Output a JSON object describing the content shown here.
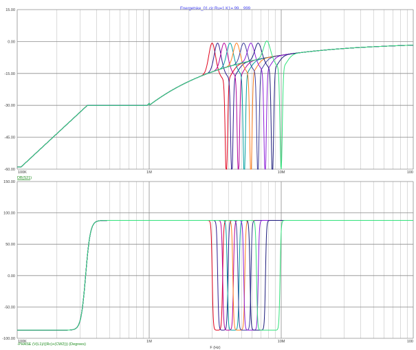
{
  "title": "Energetske_01.cir Ru=1 K1=.99....999",
  "colors": {
    "grid_major": "#8c8c8c",
    "grid_minor": "#b4b4b4",
    "title": "#3a3af0",
    "label": "#3a3a3a",
    "xlabel_green": "#1a8a1a",
    "series": [
      "#e0001a",
      "#2f1a8f",
      "#b4009a",
      "#00a0a0",
      "#ff7f1e",
      "#3a3a9a",
      "#8a1ad8",
      "#1a1a7a",
      "#30e27a"
    ]
  },
  "chart_data": [
    {
      "type": "line",
      "panel": "top",
      "xscale": "log",
      "xlim": [
        100000,
        100000000
      ],
      "ylim": [
        -60,
        15
      ],
      "yticks": [
        "15.00",
        "0.00",
        "-15.00",
        "-30.00",
        "-45.00",
        "-60.00"
      ],
      "xticks": [
        "100K",
        "1M",
        "10M",
        "100"
      ],
      "ylabel": "",
      "xlabel": "DB(S21)",
      "notch_hz": 340000,
      "series": [
        {
          "resonance_hz": 3000000,
          "peak_db": -0.5,
          "dip_db": -59
        },
        {
          "resonance_hz": 3300000,
          "peak_db": -0.5,
          "dip_db": -59
        },
        {
          "resonance_hz": 3700000,
          "peak_db": -0.5,
          "dip_db": -59
        },
        {
          "resonance_hz": 4100000,
          "peak_db": -0.5,
          "dip_db": -59
        },
        {
          "resonance_hz": 4600000,
          "peak_db": -0.5,
          "dip_db": -59
        },
        {
          "resonance_hz": 5200000,
          "peak_db": -0.5,
          "dip_db": -59
        },
        {
          "resonance_hz": 5900000,
          "peak_db": -0.5,
          "dip_db": -59
        },
        {
          "resonance_hz": 6700000,
          "peak_db": -0.5,
          "dip_db": -59
        },
        {
          "resonance_hz": 7800000,
          "peak_db": 0.5,
          "dip_db": -55
        }
      ]
    },
    {
      "type": "line",
      "panel": "bottom",
      "xscale": "log",
      "xlim": [
        100000,
        100000000
      ],
      "ylim": [
        -100,
        150
      ],
      "yticks": [
        "150.00",
        "100.00",
        "50.00",
        "0.00",
        "-50.00",
        "-100.00"
      ],
      "xticks": [
        "100K",
        "1M",
        "10M",
        "100"
      ],
      "xlabel": "-PHASE (V(L1)/((Rc)+(CW2))) (Degrees)",
      "xunit": "F (Hz)",
      "phase_step_hz": 330000,
      "phase_low_deg": -87,
      "phase_high_deg": 88,
      "series_dropouts_hz": [
        [
          3000000,
          3600000
        ],
        [
          3300000,
          3950000
        ],
        [
          3600000,
          4350000
        ],
        [
          3900000,
          4800000
        ],
        [
          4300000,
          5300000
        ],
        [
          4700000,
          5900000
        ],
        [
          5200000,
          6700000
        ],
        [
          5800000,
          7600000
        ],
        [
          6500000,
          9800000
        ]
      ]
    }
  ]
}
